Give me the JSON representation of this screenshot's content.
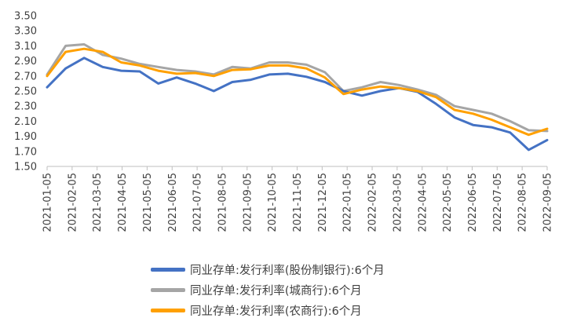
{
  "chart_data": {
    "type": "line",
    "title": "",
    "xlabel": "",
    "ylabel": "",
    "ylim": [
      1.5,
      3.5
    ],
    "y_ticks": [
      "3.50",
      "3.30",
      "3.10",
      "2.90",
      "2.70",
      "2.50",
      "2.30",
      "2.10",
      "1.90",
      "1.70",
      "1.50"
    ],
    "x_ticks": [
      "2021-01-05",
      "2021-02-05",
      "2021-03-05",
      "2021-04-05",
      "2021-05-05",
      "2021-06-05",
      "2021-07-05",
      "2021-08-05",
      "2021-09-05",
      "2021-10-05",
      "2021-11-05",
      "2021-12-05",
      "2022-01-05",
      "2022-02-05",
      "2022-03-05",
      "2022-04-05",
      "2022-05-05",
      "2022-06-05",
      "2022-07-05",
      "2022-08-05",
      "2022-09-05"
    ],
    "legend_placement": "bottom",
    "grid": false,
    "series": [
      {
        "name": "同业存单:发行利率(股份制银行):6个月",
        "color": "#4472C4",
        "values": [
          2.55,
          2.8,
          2.94,
          2.82,
          2.77,
          2.76,
          2.6,
          2.68,
          2.6,
          2.5,
          2.62,
          2.65,
          2.72,
          2.73,
          2.69,
          2.62,
          2.5,
          2.44,
          2.5,
          2.54,
          2.49,
          2.33,
          2.15,
          2.05,
          2.02,
          1.95,
          1.72,
          1.85
        ]
      },
      {
        "name": "同业存单:发行利率(城商行):6个月",
        "color": "#A5A5A5",
        "values": [
          2.72,
          3.1,
          3.12,
          2.98,
          2.93,
          2.86,
          2.82,
          2.78,
          2.76,
          2.72,
          2.82,
          2.8,
          2.88,
          2.88,
          2.85,
          2.75,
          2.5,
          2.55,
          2.62,
          2.58,
          2.52,
          2.45,
          2.3,
          2.25,
          2.2,
          2.1,
          1.98,
          1.97
        ]
      },
      {
        "name": "同业存单:发行利率(农商行):6个月",
        "color": "#FFA000",
        "values": [
          2.7,
          3.02,
          3.06,
          3.02,
          2.88,
          2.84,
          2.77,
          2.73,
          2.74,
          2.7,
          2.78,
          2.79,
          2.84,
          2.84,
          2.8,
          2.68,
          2.46,
          2.52,
          2.56,
          2.54,
          2.5,
          2.42,
          2.25,
          2.2,
          2.12,
          2.02,
          1.92,
          2.0
        ]
      }
    ]
  }
}
